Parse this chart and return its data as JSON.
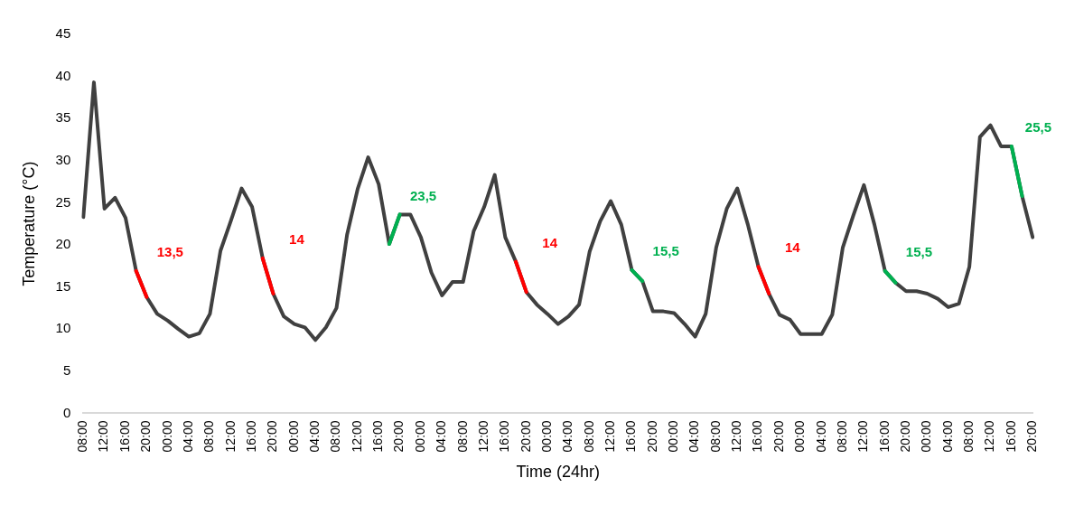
{
  "chart_data": {
    "type": "line",
    "xlabel": "Time (24hr)",
    "ylabel": "Temperature (°C)",
    "categories": [
      "08:00",
      null,
      "12:00",
      null,
      "16:00",
      null,
      "20:00",
      null,
      "00:00",
      null,
      "04:00",
      null,
      "08:00",
      null,
      "12:00",
      null,
      "16:00",
      null,
      "20:00",
      null,
      "00:00",
      null,
      "04:00",
      null,
      "08:00",
      null,
      "12:00",
      null,
      "16:00",
      null,
      "20:00",
      null,
      "00:00",
      null,
      "04:00",
      null,
      "08:00",
      null,
      "12:00",
      null,
      "16:00",
      null,
      "20:00",
      null,
      "00:00",
      null,
      "04:00",
      null,
      "08:00",
      null,
      "12:00",
      null,
      "16:00",
      null,
      "20:00",
      null,
      "00:00",
      null,
      "04:00",
      null,
      "08:00",
      null,
      "12:00",
      null,
      "16:00",
      null,
      "20:00",
      null,
      "00:00",
      null,
      "04:00",
      null,
      "08:00",
      null,
      "12:00",
      null,
      "16:00",
      null,
      "20:00",
      null,
      "00:00",
      null,
      "04:00",
      null,
      "08:00",
      null,
      "12:00",
      null,
      "16:00",
      null,
      "20:00"
    ],
    "series": [
      {
        "color": "#404040",
        "values": [
          23.3,
          39.3,
          24.3,
          25.6,
          23.2,
          16.9,
          13.8,
          11.8,
          11,
          10,
          9.1,
          9.5,
          11.8,
          19.3,
          22.9,
          26.7,
          24.5,
          18.4,
          14.2,
          11.5,
          10.6,
          10.2,
          8.7,
          10.2,
          12.5,
          21.2,
          26.6,
          30.4,
          27.2,
          20.1,
          23.6,
          23.6,
          20.9,
          16.7,
          14,
          15.6,
          15.6,
          21.6,
          24.5,
          28.3,
          20.9,
          18,
          14.4,
          12.9,
          11.8,
          10.6,
          11.5,
          12.9,
          19.2,
          22.8,
          25.2,
          22.4,
          17,
          15.7,
          12.1,
          12.1,
          11.9,
          10.6,
          9.1,
          11.8,
          19.7,
          24.3,
          26.7,
          22.4,
          17.4,
          14.2,
          11.7,
          11.1,
          9.4,
          9.4,
          9.4,
          11.7,
          19.7,
          23.5,
          27.1,
          22.4,
          16.9,
          15.5,
          14.5,
          14.5,
          14.2,
          13.6,
          12.6,
          13,
          17.4,
          32.8,
          34.2,
          31.7,
          31.7,
          25.8,
          20.9
        ]
      },
      {
        "color": "#ff0000",
        "values": [
          null,
          null,
          null,
          null,
          null,
          16.9,
          13.8,
          null,
          null,
          null,
          null,
          null,
          null,
          null,
          null,
          null,
          null,
          18.4,
          14.2,
          null,
          null,
          null,
          null,
          null,
          null,
          null,
          null,
          null,
          null,
          null,
          null,
          null,
          null,
          null,
          null,
          null,
          null,
          null,
          null,
          null,
          null,
          18,
          14.4,
          null,
          null,
          null,
          null,
          null,
          null,
          null,
          null,
          null,
          null,
          null,
          null,
          null,
          null,
          null,
          null,
          null,
          null,
          null,
          null,
          null,
          17.4,
          14.2,
          null,
          null,
          null,
          null,
          null,
          null,
          null,
          null,
          null,
          null,
          null,
          null,
          null,
          null,
          null,
          null,
          null,
          null,
          null,
          null,
          null,
          null,
          null,
          null,
          null
        ]
      },
      {
        "color": "#00b050",
        "values": [
          null,
          null,
          null,
          null,
          null,
          null,
          null,
          null,
          null,
          null,
          null,
          null,
          null,
          null,
          null,
          null,
          null,
          null,
          null,
          null,
          null,
          null,
          null,
          null,
          null,
          null,
          null,
          null,
          null,
          20.1,
          23.6,
          null,
          null,
          null,
          null,
          null,
          null,
          null,
          null,
          null,
          null,
          null,
          null,
          null,
          null,
          null,
          null,
          null,
          null,
          null,
          null,
          null,
          17,
          15.7,
          null,
          null,
          null,
          null,
          null,
          null,
          null,
          null,
          null,
          null,
          null,
          null,
          null,
          null,
          null,
          null,
          null,
          null,
          null,
          null,
          null,
          null,
          16.9,
          15.5,
          null,
          null,
          null,
          null,
          null,
          null,
          null,
          null,
          null,
          null,
          31.7,
          25.8,
          null
        ]
      }
    ],
    "annotations": [
      "13,5",
      "14",
      "23,5",
      "14",
      "15,5",
      "14",
      "15,5",
      "25,5"
    ],
    "ylim": [
      0,
      45
    ],
    "yticks": [
      0,
      5,
      10,
      15,
      20,
      25,
      30,
      35,
      40,
      45
    ],
    "grid": false,
    "legend": false,
    "marker": "none",
    "line_style": "solid"
  }
}
